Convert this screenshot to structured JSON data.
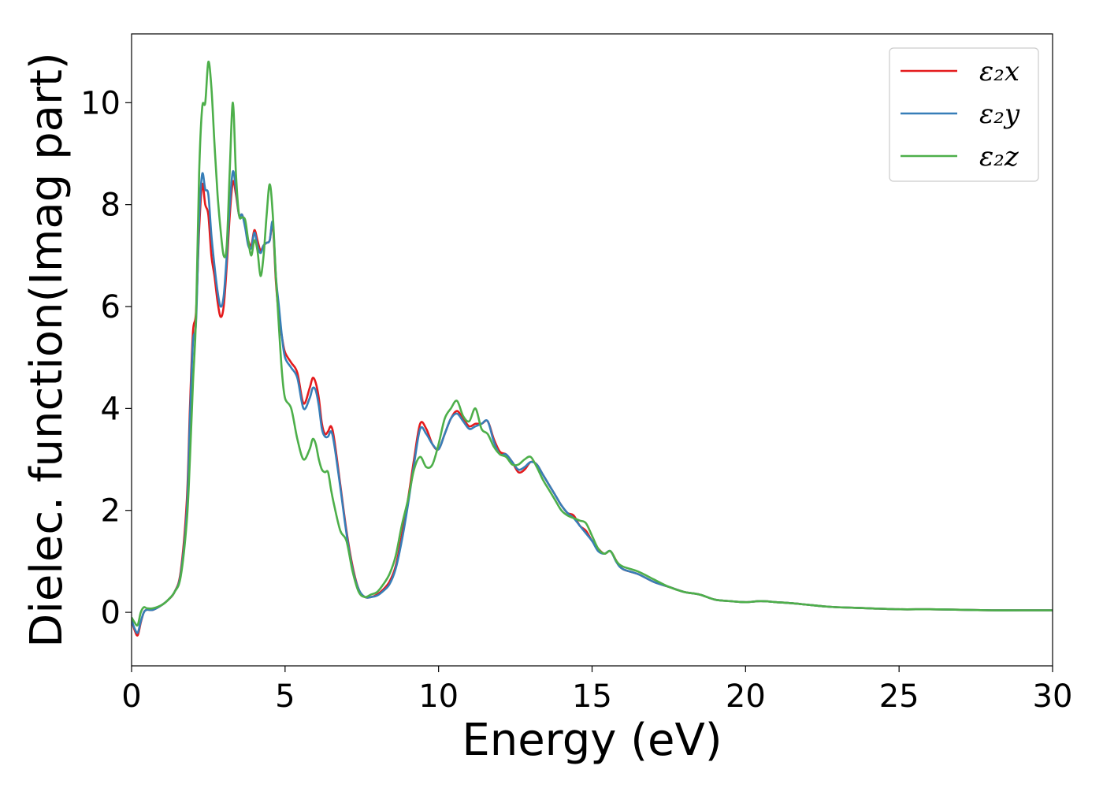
{
  "chart_data": {
    "type": "line",
    "title": "",
    "xlabel": "Energy (eV)",
    "ylabel": "Dielec. function(Imag part)",
    "xlim": [
      0,
      30
    ],
    "ylim": [
      -1.05,
      11.35
    ],
    "xticks": [
      0,
      5,
      10,
      15,
      20,
      25,
      30
    ],
    "yticks": [
      0,
      2,
      4,
      6,
      8,
      10
    ],
    "grid": false,
    "legend_position": "top-right",
    "series": [
      {
        "name": "ε₂x",
        "color": "#e41a1c",
        "x": [
          0,
          0.1,
          0.2,
          0.3,
          0.4,
          0.5,
          0.7,
          1.0,
          1.2,
          1.4,
          1.6,
          1.8,
          1.9,
          2.0,
          2.1,
          2.2,
          2.3,
          2.4,
          2.5,
          2.6,
          2.7,
          2.8,
          2.9,
          3.0,
          3.1,
          3.2,
          3.3,
          3.4,
          3.5,
          3.6,
          3.7,
          3.8,
          3.9,
          4.0,
          4.1,
          4.2,
          4.3,
          4.4,
          4.5,
          4.6,
          4.7,
          4.8,
          4.9,
          5.0,
          5.2,
          5.4,
          5.6,
          5.8,
          5.9,
          6.0,
          6.1,
          6.2,
          6.3,
          6.4,
          6.5,
          6.6,
          6.8,
          7.0,
          7.2,
          7.4,
          7.6,
          7.8,
          8.0,
          8.2,
          8.4,
          8.6,
          8.8,
          9.0,
          9.2,
          9.4,
          9.6,
          9.8,
          10.0,
          10.2,
          10.4,
          10.6,
          10.8,
          11.0,
          11.2,
          11.4,
          11.6,
          11.8,
          12.0,
          12.2,
          12.4,
          12.6,
          12.8,
          13.0,
          13.2,
          13.4,
          13.6,
          13.8,
          14.0,
          14.2,
          14.4,
          14.6,
          14.8,
          15.0,
          15.2,
          15.4,
          15.6,
          15.8,
          16.0,
          16.5,
          17.0,
          17.5,
          18.0,
          18.5,
          19.0,
          19.5,
          20.0,
          20.5,
          21.0,
          21.5,
          22.0,
          22.5,
          23.0,
          24.0,
          25.0,
          26.0,
          27.0,
          28.0,
          29.0,
          30.0
        ],
        "y": [
          -0.15,
          -0.35,
          -0.45,
          -0.2,
          0.0,
          0.05,
          0.05,
          0.15,
          0.25,
          0.4,
          0.8,
          2.2,
          4.0,
          5.5,
          5.9,
          7.5,
          8.4,
          8.0,
          7.8,
          7.0,
          6.6,
          6.1,
          5.8,
          6.0,
          6.8,
          7.8,
          8.45,
          8.2,
          7.8,
          7.8,
          7.6,
          7.3,
          7.2,
          7.5,
          7.3,
          7.1,
          7.2,
          7.25,
          7.3,
          7.6,
          6.5,
          5.8,
          5.4,
          5.1,
          4.9,
          4.7,
          4.1,
          4.4,
          4.6,
          4.5,
          4.2,
          3.7,
          3.5,
          3.55,
          3.65,
          3.4,
          2.5,
          1.6,
          0.9,
          0.45,
          0.3,
          0.3,
          0.35,
          0.45,
          0.6,
          0.9,
          1.5,
          2.2,
          3.0,
          3.7,
          3.6,
          3.3,
          3.2,
          3.5,
          3.8,
          3.95,
          3.8,
          3.65,
          3.7,
          3.7,
          3.75,
          3.4,
          3.15,
          3.1,
          2.95,
          2.75,
          2.8,
          2.95,
          2.9,
          2.7,
          2.5,
          2.3,
          2.1,
          1.95,
          1.9,
          1.7,
          1.6,
          1.4,
          1.25,
          1.15,
          1.2,
          1.0,
          0.85,
          0.75,
          0.6,
          0.5,
          0.4,
          0.35,
          0.25,
          0.22,
          0.2,
          0.22,
          0.2,
          0.18,
          0.15,
          0.12,
          0.1,
          0.08,
          0.06,
          0.06,
          0.05,
          0.04,
          0.04,
          0.04
        ]
      },
      {
        "name": "ε₂y",
        "color": "#377eb8",
        "x": [
          0,
          0.1,
          0.2,
          0.3,
          0.4,
          0.5,
          0.7,
          1.0,
          1.2,
          1.4,
          1.6,
          1.8,
          1.9,
          2.0,
          2.1,
          2.2,
          2.3,
          2.4,
          2.5,
          2.6,
          2.7,
          2.8,
          2.9,
          3.0,
          3.1,
          3.2,
          3.3,
          3.4,
          3.5,
          3.6,
          3.7,
          3.8,
          3.9,
          4.0,
          4.1,
          4.2,
          4.3,
          4.4,
          4.5,
          4.6,
          4.7,
          4.8,
          4.9,
          5.0,
          5.2,
          5.4,
          5.6,
          5.8,
          5.9,
          6.0,
          6.1,
          6.2,
          6.3,
          6.4,
          6.5,
          6.6,
          6.8,
          7.0,
          7.2,
          7.4,
          7.6,
          7.8,
          8.0,
          8.2,
          8.4,
          8.6,
          8.8,
          9.0,
          9.2,
          9.4,
          9.6,
          9.8,
          10.0,
          10.2,
          10.4,
          10.6,
          10.8,
          11.0,
          11.2,
          11.4,
          11.6,
          11.8,
          12.0,
          12.2,
          12.4,
          12.6,
          12.8,
          13.0,
          13.2,
          13.4,
          13.6,
          13.8,
          14.0,
          14.2,
          14.4,
          14.6,
          14.8,
          15.0,
          15.2,
          15.4,
          15.6,
          15.8,
          16.0,
          16.5,
          17.0,
          17.5,
          18.0,
          18.5,
          19.0,
          19.5,
          20.0,
          20.5,
          21.0,
          21.5,
          22.0,
          22.5,
          23.0,
          24.0,
          25.0,
          26.0,
          27.0,
          28.0,
          29.0,
          30.0
        ],
        "y": [
          -0.15,
          -0.32,
          -0.4,
          -0.18,
          0.0,
          0.05,
          0.05,
          0.15,
          0.25,
          0.4,
          0.75,
          2.0,
          3.8,
          5.3,
          5.7,
          7.7,
          8.6,
          8.3,
          8.2,
          7.4,
          6.8,
          6.3,
          6.0,
          6.2,
          7.0,
          8.0,
          8.65,
          8.3,
          7.8,
          7.8,
          7.55,
          7.2,
          7.15,
          7.45,
          7.2,
          7.05,
          7.2,
          7.25,
          7.3,
          7.65,
          6.6,
          6.0,
          5.4,
          5.0,
          4.8,
          4.6,
          4.0,
          4.2,
          4.4,
          4.35,
          4.05,
          3.6,
          3.45,
          3.45,
          3.55,
          3.3,
          2.45,
          1.55,
          0.85,
          0.45,
          0.3,
          0.3,
          0.33,
          0.42,
          0.55,
          0.85,
          1.4,
          2.1,
          2.9,
          3.6,
          3.5,
          3.3,
          3.2,
          3.5,
          3.8,
          3.9,
          3.75,
          3.6,
          3.65,
          3.7,
          3.75,
          3.35,
          3.1,
          3.1,
          2.95,
          2.8,
          2.85,
          2.95,
          2.9,
          2.7,
          2.5,
          2.3,
          2.1,
          1.95,
          1.85,
          1.7,
          1.55,
          1.4,
          1.2,
          1.15,
          1.2,
          0.98,
          0.85,
          0.75,
          0.6,
          0.5,
          0.4,
          0.35,
          0.25,
          0.22,
          0.2,
          0.22,
          0.2,
          0.18,
          0.15,
          0.12,
          0.1,
          0.08,
          0.06,
          0.06,
          0.05,
          0.04,
          0.04,
          0.04
        ]
      },
      {
        "name": "ε₂z",
        "color": "#4daf4a",
        "x": [
          0,
          0.1,
          0.2,
          0.3,
          0.4,
          0.5,
          0.7,
          1.0,
          1.2,
          1.4,
          1.6,
          1.8,
          1.9,
          2.0,
          2.1,
          2.2,
          2.3,
          2.4,
          2.5,
          2.6,
          2.7,
          2.8,
          2.9,
          3.0,
          3.1,
          3.2,
          3.3,
          3.4,
          3.5,
          3.6,
          3.7,
          3.8,
          3.9,
          4.0,
          4.1,
          4.2,
          4.3,
          4.4,
          4.5,
          4.6,
          4.7,
          4.8,
          4.9,
          5.0,
          5.2,
          5.4,
          5.6,
          5.8,
          5.9,
          6.0,
          6.1,
          6.2,
          6.3,
          6.4,
          6.5,
          6.6,
          6.8,
          7.0,
          7.2,
          7.4,
          7.6,
          7.8,
          8.0,
          8.2,
          8.4,
          8.6,
          8.8,
          9.0,
          9.2,
          9.4,
          9.6,
          9.8,
          10.0,
          10.2,
          10.4,
          10.6,
          10.8,
          11.0,
          11.2,
          11.4,
          11.6,
          11.8,
          12.0,
          12.2,
          12.4,
          12.6,
          12.8,
          13.0,
          13.2,
          13.4,
          13.6,
          13.8,
          14.0,
          14.2,
          14.4,
          14.6,
          14.8,
          15.0,
          15.2,
          15.4,
          15.6,
          15.8,
          16.0,
          16.5,
          17.0,
          17.5,
          18.0,
          18.5,
          19.0,
          19.5,
          20.0,
          20.5,
          21.0,
          21.5,
          22.0,
          22.5,
          23.0,
          24.0,
          25.0,
          26.0,
          27.0,
          28.0,
          29.0,
          30.0
        ],
        "y": [
          -0.1,
          -0.2,
          -0.25,
          0.0,
          0.1,
          0.08,
          0.08,
          0.15,
          0.25,
          0.4,
          0.7,
          1.8,
          3.0,
          4.5,
          5.8,
          8.6,
          9.9,
          10.0,
          10.8,
          10.3,
          9.2,
          8.2,
          7.5,
          7.0,
          7.2,
          8.7,
          10.0,
          8.6,
          7.8,
          7.75,
          7.7,
          7.3,
          7.0,
          7.3,
          7.1,
          6.6,
          7.0,
          7.8,
          8.4,
          7.8,
          6.6,
          5.6,
          4.7,
          4.2,
          4.0,
          3.4,
          3.0,
          3.2,
          3.4,
          3.3,
          3.0,
          2.8,
          2.75,
          2.75,
          2.4,
          2.1,
          1.6,
          1.4,
          0.8,
          0.4,
          0.3,
          0.35,
          0.4,
          0.55,
          0.75,
          1.1,
          1.7,
          2.2,
          2.8,
          3.05,
          2.85,
          2.9,
          3.3,
          3.8,
          4.0,
          4.15,
          3.85,
          3.75,
          4.0,
          3.6,
          3.5,
          3.25,
          3.1,
          3.05,
          2.9,
          2.9,
          3.0,
          3.05,
          2.85,
          2.6,
          2.4,
          2.2,
          2.0,
          1.9,
          1.85,
          1.8,
          1.75,
          1.5,
          1.25,
          1.15,
          1.2,
          1.0,
          0.9,
          0.8,
          0.65,
          0.5,
          0.4,
          0.35,
          0.25,
          0.22,
          0.2,
          0.22,
          0.2,
          0.18,
          0.15,
          0.12,
          0.1,
          0.08,
          0.06,
          0.06,
          0.05,
          0.04,
          0.04,
          0.04
        ]
      }
    ]
  }
}
